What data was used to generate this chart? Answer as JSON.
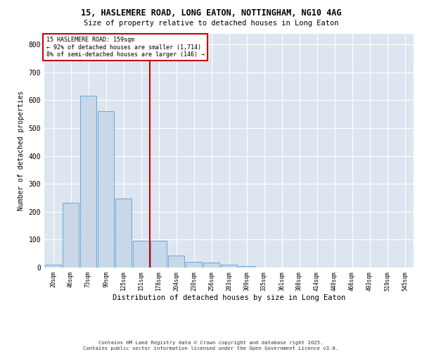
{
  "title_line1": "15, HASLEMERE ROAD, LONG EATON, NOTTINGHAM, NG10 4AG",
  "title_line2": "Size of property relative to detached houses in Long Eaton",
  "xlabel": "Distribution of detached houses by size in Long Eaton",
  "ylabel": "Number of detached properties",
  "bar_color": "#c8d8e8",
  "bar_edge_color": "#5b9bd5",
  "background_color": "#dde6f0",
  "vline_color": "#cc0000",
  "vline_x": 5.5,
  "annotation_text": "15 HASLEMERE ROAD: 159sqm\n← 92% of detached houses are smaller (1,714)\n8% of semi-detached houses are larger (146) →",
  "annotation_box_color": "#cc0000",
  "categories": [
    "20sqm",
    "46sqm",
    "73sqm",
    "99sqm",
    "125sqm",
    "151sqm",
    "178sqm",
    "204sqm",
    "230sqm",
    "256sqm",
    "283sqm",
    "309sqm",
    "335sqm",
    "361sqm",
    "388sqm",
    "414sqm",
    "440sqm",
    "466sqm",
    "493sqm",
    "519sqm",
    "545sqm"
  ],
  "values": [
    10,
    232,
    617,
    560,
    248,
    97,
    97,
    42,
    20,
    18,
    10,
    5,
    0,
    0,
    0,
    0,
    0,
    0,
    0,
    0,
    0
  ],
  "ylim": [
    0,
    840
  ],
  "yticks": [
    0,
    100,
    200,
    300,
    400,
    500,
    600,
    700,
    800
  ],
  "footer_line1": "Contains HM Land Registry data © Crown copyright and database right 2025.",
  "footer_line2": "Contains public sector information licensed under the Open Government Licence v3.0.",
  "fig_width": 6.0,
  "fig_height": 5.0,
  "dpi": 100
}
